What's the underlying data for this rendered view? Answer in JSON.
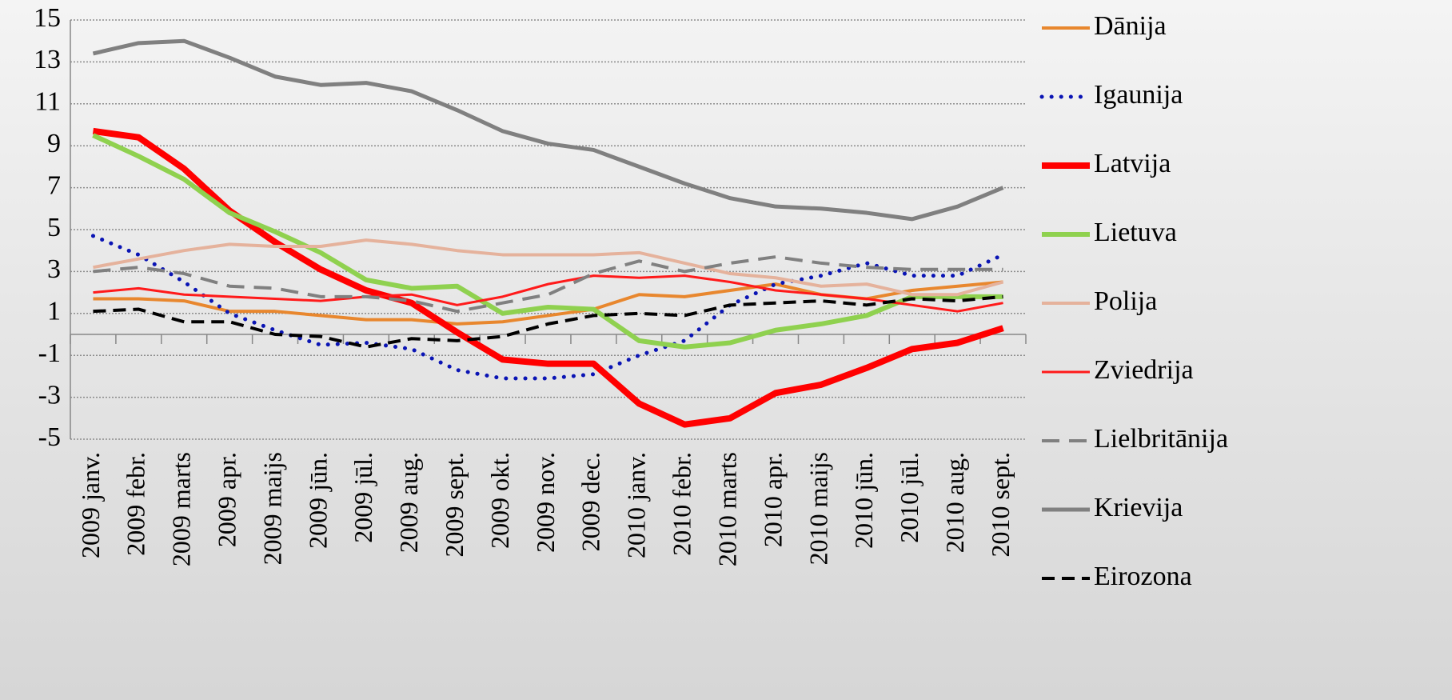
{
  "chart_data": {
    "type": "line",
    "categories": [
      "2009 janv.",
      "2009 febr.",
      "2009 marts",
      "2009 apr.",
      "2009 maijs",
      "2009 jūn.",
      "2009 jūl.",
      "2009 aug.",
      "2009 sept.",
      "2009 okt.",
      "2009 nov.",
      "2009 dec.",
      "2010 janv.",
      "2010 febr.",
      "2010 marts",
      "2010 apr.",
      "2010 maijs",
      "2010 jūn.",
      "2010 jūl.",
      "2010 aug.",
      "2010 sept."
    ],
    "ylim": [
      -5,
      15
    ],
    "yticks": [
      -5,
      -3,
      -1,
      1,
      3,
      5,
      7,
      9,
      11,
      13,
      15
    ],
    "grid": true,
    "legend": "right",
    "series": [
      {
        "name": "Dānija",
        "color": "#e8872e",
        "width": 4,
        "dash": "solid",
        "values": [
          1.7,
          1.7,
          1.6,
          1.1,
          1.1,
          0.9,
          0.7,
          0.7,
          0.5,
          0.6,
          0.9,
          1.2,
          1.9,
          1.8,
          2.1,
          2.4,
          1.9,
          1.7,
          2.1,
          2.3,
          2.5
        ]
      },
      {
        "name": "Igaunija",
        "color": "#0a14b4",
        "width": 5,
        "dash": "dotted",
        "values": [
          4.7,
          3.8,
          2.5,
          1.0,
          0.2,
          -0.5,
          -0.4,
          -0.7,
          -1.7,
          -2.1,
          -2.1,
          -1.9,
          -1.0,
          -0.3,
          1.4,
          2.4,
          2.8,
          3.4,
          2.8,
          2.8,
          3.8
        ]
      },
      {
        "name": "Latvija",
        "color": "#ff0000",
        "width": 8,
        "dash": "solid",
        "values": [
          9.7,
          9.4,
          7.9,
          5.9,
          4.4,
          3.1,
          2.1,
          1.5,
          0.1,
          -1.2,
          -1.4,
          -1.4,
          -3.3,
          -4.3,
          -4.0,
          -2.8,
          -2.4,
          -1.6,
          -0.7,
          -0.4,
          0.3
        ]
      },
      {
        "name": "Lietuva",
        "color": "#8fd14f",
        "width": 6,
        "dash": "solid",
        "values": [
          9.5,
          8.5,
          7.4,
          5.8,
          4.9,
          3.9,
          2.6,
          2.2,
          2.3,
          1.0,
          1.3,
          1.2,
          -0.3,
          -0.6,
          -0.4,
          0.2,
          0.5,
          0.9,
          1.8,
          1.8,
          1.8
        ]
      },
      {
        "name": "Polija",
        "color": "#e5b29c",
        "width": 4,
        "dash": "solid",
        "values": [
          3.2,
          3.6,
          4.0,
          4.3,
          4.2,
          4.2,
          4.5,
          4.3,
          4.0,
          3.8,
          3.8,
          3.8,
          3.9,
          3.4,
          2.9,
          2.7,
          2.3,
          2.4,
          1.9,
          1.9,
          2.5
        ]
      },
      {
        "name": "Zviedrija",
        "color": "#ff1a1a",
        "width": 3,
        "dash": "solid",
        "values": [
          2.0,
          2.2,
          1.9,
          1.8,
          1.7,
          1.6,
          1.8,
          1.9,
          1.4,
          1.8,
          2.4,
          2.8,
          2.7,
          2.8,
          2.5,
          2.1,
          1.9,
          1.7,
          1.4,
          1.1,
          1.5
        ]
      },
      {
        "name": "Lielbritānija",
        "color": "#808080",
        "width": 4,
        "dash": "dashed",
        "values": [
          3.0,
          3.2,
          2.9,
          2.3,
          2.2,
          1.8,
          1.8,
          1.6,
          1.1,
          1.5,
          1.9,
          2.9,
          3.5,
          3.0,
          3.4,
          3.7,
          3.4,
          3.2,
          3.1,
          3.1,
          3.1
        ]
      },
      {
        "name": "Krievija",
        "color": "#808080",
        "width": 5,
        "dash": "solid",
        "values": [
          13.4,
          13.9,
          14.0,
          13.2,
          12.3,
          11.9,
          12.0,
          11.6,
          10.7,
          9.7,
          9.1,
          8.8,
          8.0,
          7.2,
          6.5,
          6.1,
          6.0,
          5.8,
          5.5,
          6.1,
          7.0
        ]
      },
      {
        "name": "Eirozona",
        "color": "#000000",
        "width": 4,
        "dash": "longdash",
        "values": [
          1.1,
          1.2,
          0.6,
          0.6,
          0.0,
          -0.1,
          -0.6,
          -0.2,
          -0.3,
          -0.1,
          0.5,
          0.9,
          1.0,
          0.9,
          1.4,
          1.5,
          1.6,
          1.4,
          1.7,
          1.6,
          1.8
        ]
      }
    ]
  }
}
